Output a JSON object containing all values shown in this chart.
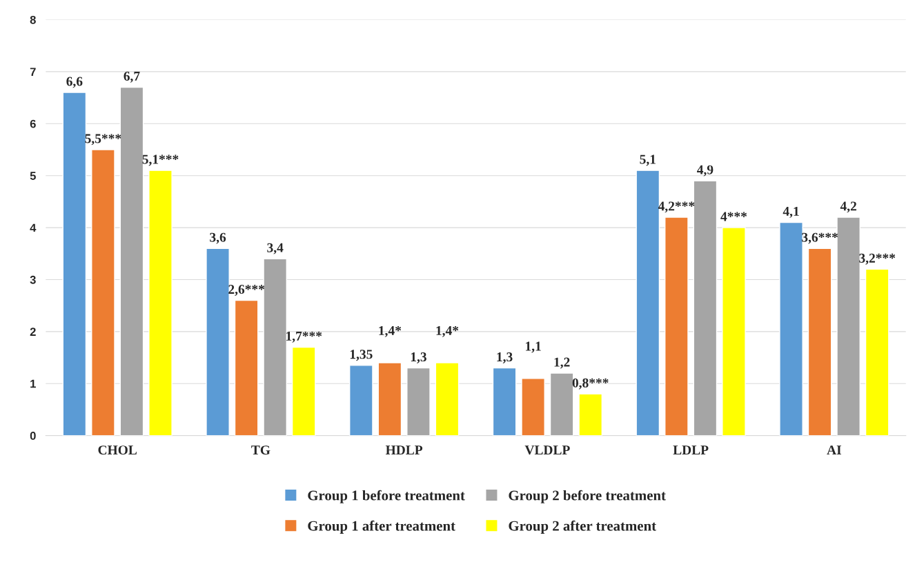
{
  "chart_data": {
    "type": "bar",
    "categories": [
      "CHOL",
      "TG",
      "HDLP",
      "VLDLP",
      "LDLP",
      "AI"
    ],
    "series": [
      {
        "name": "Group 1 before treatment",
        "color": "#5b9bd5",
        "values": [
          6.6,
          3.6,
          1.35,
          1.3,
          5.1,
          4.1
        ],
        "value_labels": [
          "6,6",
          "3,6",
          "1,35",
          "1,3",
          "5,1",
          "4,1"
        ]
      },
      {
        "name": "Group 1 after treatment",
        "color": "#ed7d31",
        "values": [
          5.5,
          2.6,
          1.4,
          1.1,
          4.2,
          3.6
        ],
        "value_labels": [
          "5,5***",
          "2,6***",
          "1,4*",
          "1,1",
          "4,2***",
          "3,6***"
        ]
      },
      {
        "name": "Group 2 before treatment",
        "color": "#a5a5a5",
        "values": [
          6.7,
          3.4,
          1.3,
          1.2,
          4.9,
          4.2
        ],
        "value_labels": [
          "6,7",
          "3,4",
          "1,3",
          "1,2",
          "4,9",
          "4,2"
        ]
      },
      {
        "name": "Group 2 after treatment",
        "color": "#ffff00",
        "values": [
          5.1,
          1.7,
          1.4,
          0.8,
          4.0,
          3.2
        ],
        "value_labels": [
          "5,1***",
          "1,7***",
          "1,4*",
          "0,8***",
          "4***",
          "3,2***"
        ]
      }
    ],
    "ylim": [
      0,
      8
    ],
    "yticks": [
      0,
      1,
      2,
      3,
      4,
      5,
      6,
      7,
      8
    ],
    "grid": "y",
    "legend": "bottom"
  }
}
